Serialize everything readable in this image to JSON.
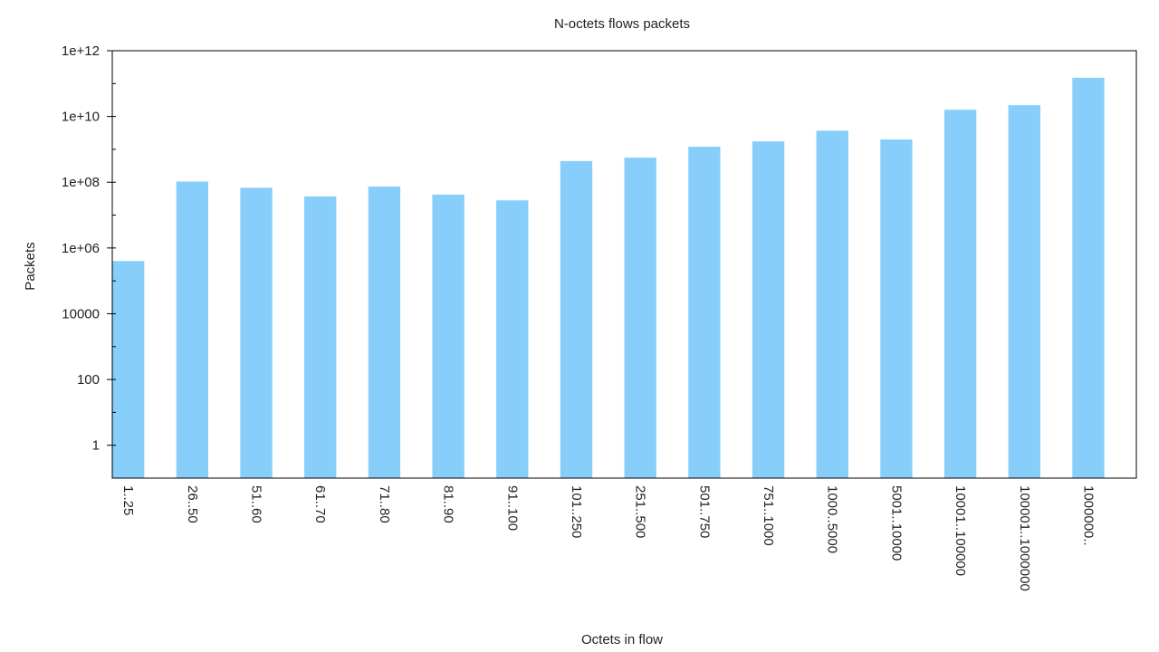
{
  "chart_data": {
    "type": "bar",
    "title": "N-octets flows packets",
    "xlabel": "Octets in flow",
    "ylabel": "Packets",
    "yscale": "log",
    "ylim": [
      0.1,
      1000000000000
    ],
    "yticks": [
      {
        "value": 1,
        "label": "1"
      },
      {
        "value": 100,
        "label": "100"
      },
      {
        "value": 10000,
        "label": "10000"
      },
      {
        "value": 1000000,
        "label": "1e+06"
      },
      {
        "value": 100000000,
        "label": "1e+08"
      },
      {
        "value": 10000000000,
        "label": "1e+10"
      },
      {
        "value": 1000000000000,
        "label": "1e+12"
      }
    ],
    "categories": [
      "1..25",
      "26..50",
      "51..60",
      "61..70",
      "71..80",
      "81..90",
      "91..100",
      "101..250",
      "251..500",
      "501..750",
      "751..1000",
      "1000..5000",
      "5001..10000",
      "10001..100000",
      "100001..1000000",
      "1000000.."
    ],
    "values": [
      400000,
      105000000,
      68000000,
      37000000,
      74000000,
      42000000,
      28000000,
      440000000,
      560000000,
      1200000000,
      1750000000,
      3700000000,
      2000000000,
      16000000000,
      22000000000,
      150000000000
    ],
    "bar_color": "#87cefa",
    "grid": false,
    "legend": "none"
  }
}
